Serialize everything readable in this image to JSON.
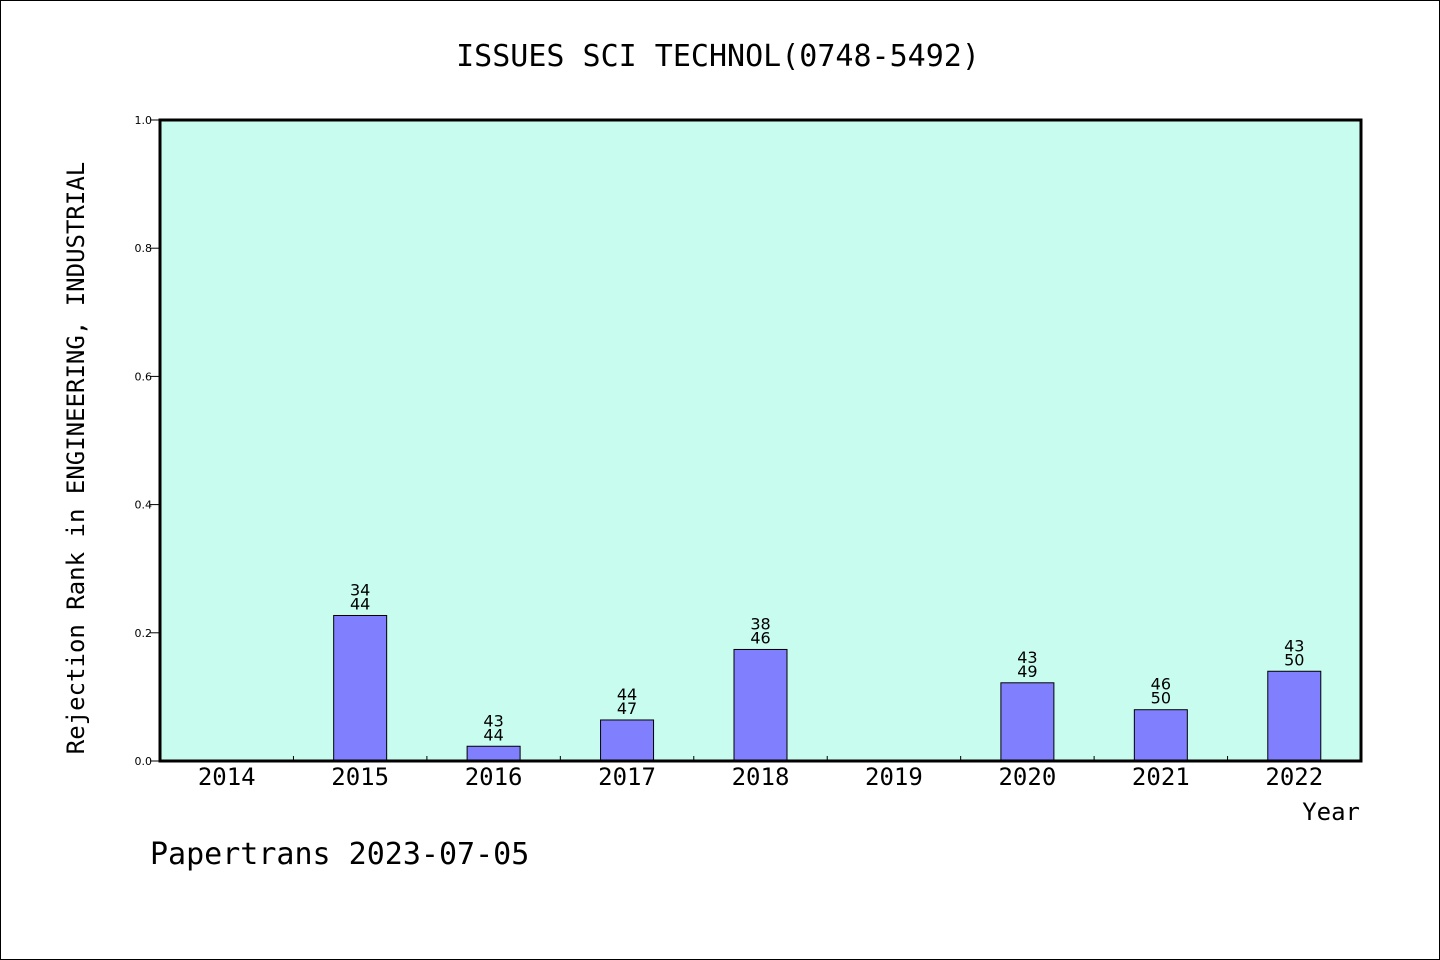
{
  "chart_data": {
    "type": "bar",
    "title": "ISSUES SCI TECHNOL(0748-5492)",
    "xlabel": "Year",
    "ylabel": "Rejection Rank in ENGINEERING, INDUSTRIAL",
    "ylim": [
      0,
      1.0
    ],
    "yticks": [
      "0.0",
      "0.2",
      "0.4",
      "0.6",
      "0.8",
      "1.0"
    ],
    "categories": [
      "2014",
      "2015",
      "2016",
      "2017",
      "2018",
      "2019",
      "2020",
      "2021",
      "2022"
    ],
    "values": [
      null,
      0.227,
      0.023,
      0.064,
      0.174,
      null,
      0.122,
      0.08,
      0.14
    ],
    "labels": [
      null,
      [
        "34",
        "44"
      ],
      [
        "43",
        "44"
      ],
      [
        "44",
        "47"
      ],
      [
        "38",
        "46"
      ],
      null,
      [
        "43",
        "49"
      ],
      [
        "46",
        "50"
      ],
      [
        "43",
        "50"
      ]
    ],
    "plot_background": "#c8fcee",
    "bar_color": "#8080ff",
    "grid": false
  },
  "footer": "Papertrans 2023-07-05"
}
